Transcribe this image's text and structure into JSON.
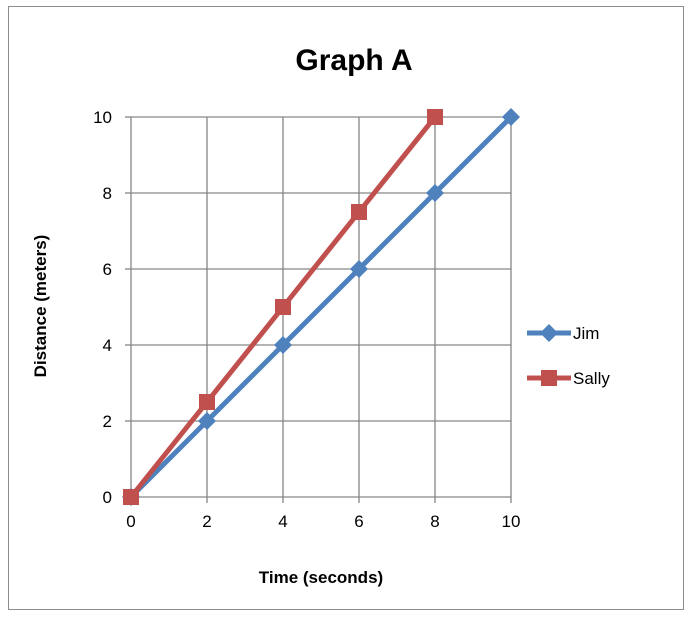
{
  "chart_data": {
    "type": "line",
    "title": "Graph A",
    "xlabel": "Time (seconds)",
    "ylabel": "Distance (meters)",
    "xlim": [
      0,
      10
    ],
    "ylim": [
      0,
      10
    ],
    "xticks": [
      "0",
      "2",
      "4",
      "6",
      "8",
      "10"
    ],
    "yticks": [
      "0",
      "2",
      "4",
      "6",
      "8",
      "10"
    ],
    "grid": true,
    "legend_position": "right",
    "series": [
      {
        "name": "Jim",
        "color": "#4f81bd",
        "marker": "diamond",
        "x": [
          0,
          2,
          4,
          6,
          8,
          10
        ],
        "y": [
          0,
          2,
          4,
          6,
          8,
          10
        ]
      },
      {
        "name": "Sally",
        "color": "#c0504d",
        "marker": "square",
        "x": [
          0,
          2,
          4,
          6,
          8
        ],
        "y": [
          0,
          2.5,
          5,
          7.5,
          10
        ]
      }
    ]
  }
}
